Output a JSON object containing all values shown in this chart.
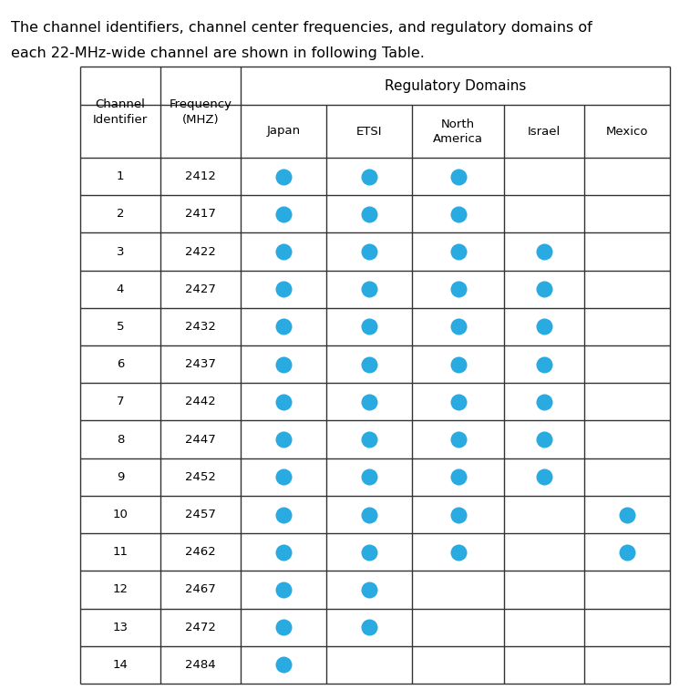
{
  "title_line1": "The channel identifiers, channel center frequencies, and regulatory domains of",
  "title_line2": "each 22-MHz-wide channel are shown in following Table.",
  "channels": [
    1,
    2,
    3,
    4,
    5,
    6,
    7,
    8,
    9,
    10,
    11,
    12,
    13,
    14
  ],
  "frequencies": [
    2412,
    2417,
    2422,
    2427,
    2432,
    2437,
    2442,
    2447,
    2452,
    2457,
    2462,
    2467,
    2472,
    2484
  ],
  "domains": [
    "Japan",
    "ETSI",
    "North\nAmerica",
    "Israel",
    "Mexico"
  ],
  "dot_color": "#29ABE2",
  "dot_data": [
    [
      1,
      1,
      1,
      0,
      0
    ],
    [
      1,
      1,
      1,
      0,
      0
    ],
    [
      1,
      1,
      1,
      1,
      0
    ],
    [
      1,
      1,
      1,
      1,
      0
    ],
    [
      1,
      1,
      1,
      1,
      0
    ],
    [
      1,
      1,
      1,
      1,
      0
    ],
    [
      1,
      1,
      1,
      1,
      0
    ],
    [
      1,
      1,
      1,
      1,
      0
    ],
    [
      1,
      1,
      1,
      1,
      0
    ],
    [
      1,
      1,
      1,
      0,
      1
    ],
    [
      1,
      1,
      1,
      0,
      1
    ],
    [
      1,
      1,
      0,
      0,
      0
    ],
    [
      1,
      1,
      0,
      0,
      0
    ],
    [
      1,
      0,
      0,
      0,
      0
    ]
  ],
  "col_header1": "Channel\nIdentifier",
  "col_header2": "Frequency\n(MHZ)",
  "group_header": "Regulatory Domains",
  "bg_color": "#ffffff",
  "text_color": "#000000",
  "line_color": "#333333",
  "font_size": 9.5,
  "title_font_size": 11.5
}
